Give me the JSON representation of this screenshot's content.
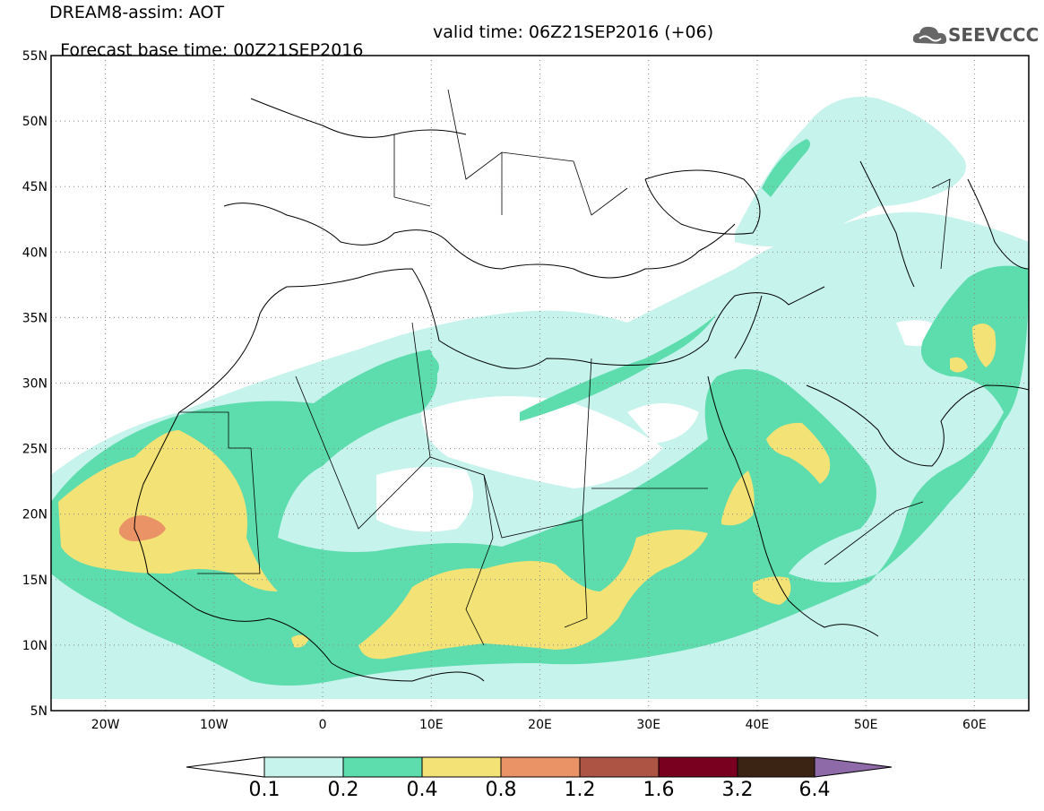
{
  "title": {
    "line1": "DREAM8-assim: AOT",
    "base": "Forecast base time: 00Z21SEP2016",
    "valid": "valid time: 06Z21SEP2016 (+06)"
  },
  "logo": {
    "text": "SEEVCCC",
    "icon": "cloud-icon"
  },
  "map": {
    "lon_range": [
      -25,
      65
    ],
    "lat_range": [
      5,
      55
    ],
    "lat_ticks": [
      "5N",
      "10N",
      "15N",
      "20N",
      "25N",
      "30N",
      "35N",
      "40N",
      "45N",
      "50N",
      "55N"
    ],
    "lon_ticks": [
      "20W",
      "10W",
      "0",
      "10E",
      "20E",
      "30E",
      "40E",
      "50E",
      "60E"
    ],
    "grid": "dotted"
  },
  "colorbar": {
    "labels": [
      "0.1",
      "0.2",
      "0.4",
      "0.8",
      "1.2",
      "1.6",
      "3.2",
      "6.4"
    ],
    "colors": {
      "below": "#ffffff",
      "c1": "#c6f3ec",
      "c2": "#5ddcae",
      "c3": "#f3e275",
      "c4": "#e99366",
      "c5": "#ad5445",
      "c6": "#7a0020",
      "c7": "#3b2414",
      "above": "#8e6aa8"
    }
  }
}
